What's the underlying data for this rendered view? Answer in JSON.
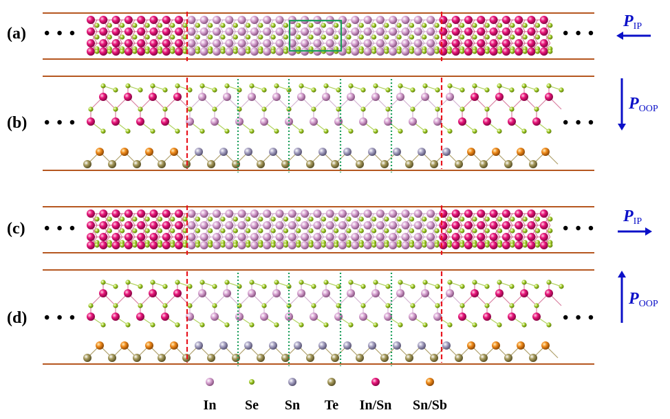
{
  "panels": [
    {
      "label": "(a)",
      "ellipsis_left": "• • •",
      "ellipsis_right": "• • •"
    },
    {
      "label": "(b)",
      "ellipsis_left": "• • •",
      "ellipsis_right": "• • •"
    },
    {
      "label": "(c)",
      "ellipsis_left": "• • •",
      "ellipsis_right": "• • •"
    },
    {
      "label": "(d)",
      "ellipsis_left": "• • •",
      "ellipsis_right": "• • •"
    }
  ],
  "polarization": {
    "a": {
      "symbol": "P",
      "sub": "IP",
      "direction": "left"
    },
    "b": {
      "symbol": "P",
      "sub": "OOP",
      "direction": "down"
    },
    "c": {
      "symbol": "P",
      "sub": "IP",
      "direction": "right"
    },
    "d": {
      "symbol": "P",
      "sub": "OOP",
      "direction": "up"
    }
  },
  "legend": [
    {
      "label": "In",
      "color": "#d9a5d3"
    },
    {
      "label": "Se",
      "color": "#a6d12a"
    },
    {
      "label": "Sn",
      "color": "#a8a3c4"
    },
    {
      "label": "Te",
      "color": "#a69a5c"
    },
    {
      "label": "In/Sn",
      "color": "#e8157a"
    },
    {
      "label": "Sn/Sb",
      "color": "#f08a1a"
    }
  ],
  "colors": {
    "boundary": "#b5561f",
    "domain_wall": "#e8141e",
    "unit_cell": "#1a9e5a",
    "arrow": "#0b10c8"
  }
}
